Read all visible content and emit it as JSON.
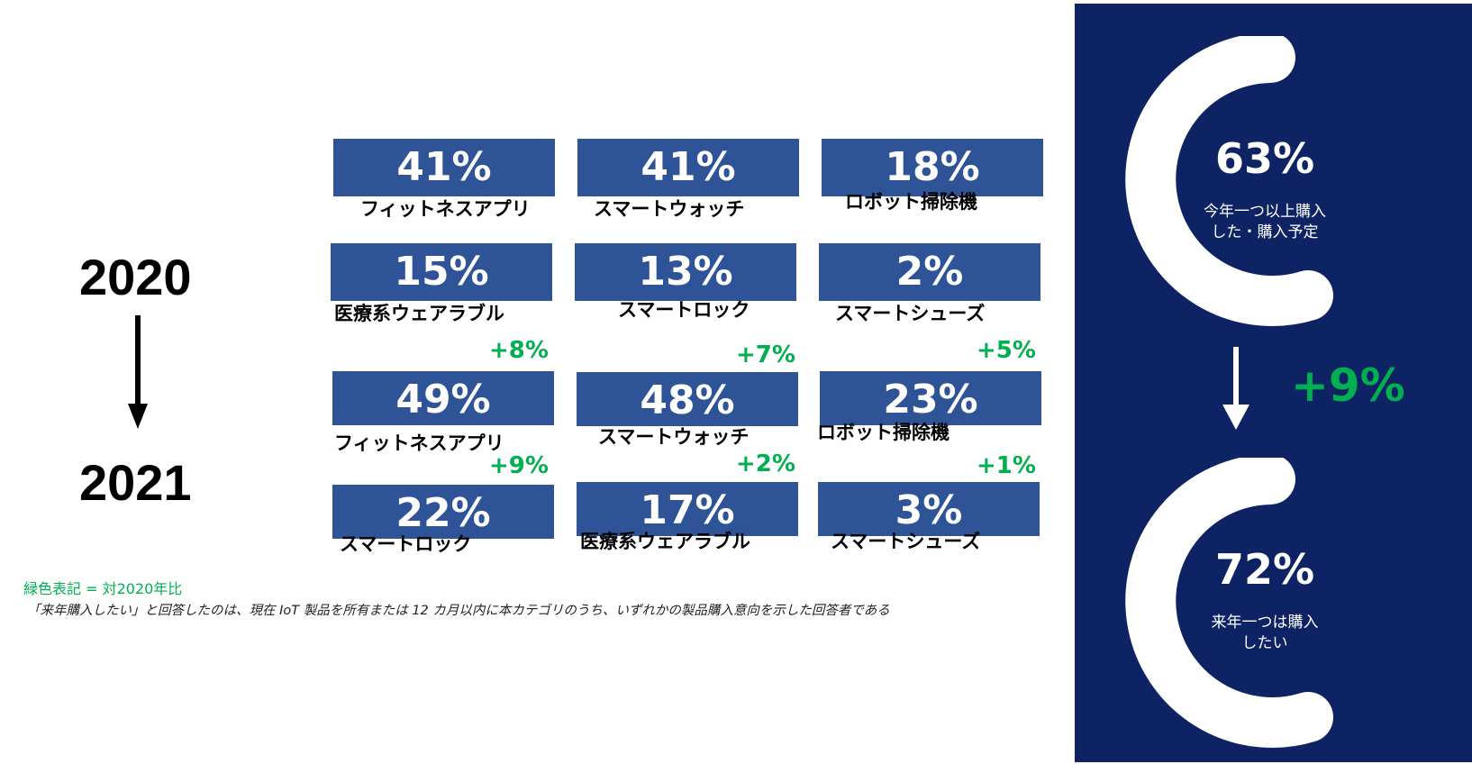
{
  "years": {
    "from": "2020",
    "to": "2021"
  },
  "tiles_2020": [
    {
      "pct": "41%",
      "label": "フィットネスアプリ"
    },
    {
      "pct": "41%",
      "label": "スマートウォッチ"
    },
    {
      "pct": "18%",
      "label": "ロボット掃除機"
    },
    {
      "pct": "15%",
      "label": "医療系ウェアラブル"
    },
    {
      "pct": "13%",
      "label": "スマートロック"
    },
    {
      "pct": "2%",
      "label": "スマートシューズ"
    }
  ],
  "tiles_2021": [
    {
      "pct": "49%",
      "label": "フィットネスアプリ",
      "delta": "+8%"
    },
    {
      "pct": "48%",
      "label": "スマートウォッチ",
      "delta": "+7%"
    },
    {
      "pct": "23%",
      "label": "ロボット掃除機",
      "delta": "+5%"
    },
    {
      "pct": "22%",
      "label": "スマートロック",
      "delta": "+9%"
    },
    {
      "pct": "17%",
      "label": "医療系ウェアラブル",
      "delta": "+2%"
    },
    {
      "pct": "3%",
      "label": "スマートシューズ",
      "delta": "+1%"
    }
  ],
  "notes": {
    "legend": "緑色表記 = 対2020年比",
    "definition": "「来年購入したい」と回答したのは、現在 IoT 製品を所有または 12 カ月以内に本カテゴリのうち、いずれかの製品購入意向を示した回答者である"
  },
  "summary": {
    "this_year": {
      "pct": "63%",
      "caption": "今年一つ以上購入\nした・購入予定"
    },
    "next_year": {
      "pct": "72%",
      "caption": "来年一つは購入\nしたい"
    },
    "delta": "+9%"
  },
  "colors": {
    "tile": "#2e5396",
    "panel": "#0d2363",
    "accent_green": "#00b050"
  },
  "icons": {
    "year_arrow": "arrow-down-icon",
    "panel_arrow": "arrow-down-icon",
    "ring": "ring-gauge-icon"
  }
}
